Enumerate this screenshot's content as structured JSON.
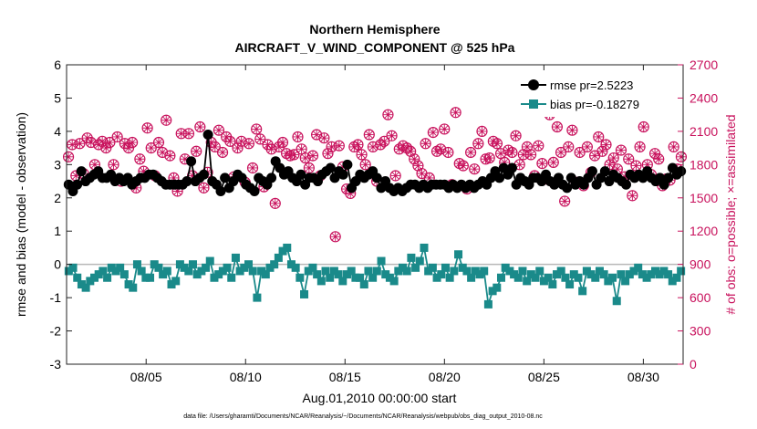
{
  "chart_data": {
    "type": "line",
    "title_line1": "Northern Hemisphere",
    "title_line2": "AIRCRAFT_V_WIND_COMPONENT @ 525 hPa",
    "xlabel": "Aug.01,2010 00:00:00 start",
    "ylabel_left": "rmse and bias (model - observation)",
    "ylabel_right": "# of obs: o=possible; ×=assimilated",
    "footnote": "data file: /Users/gharamti/Documents/NCAR/Reanalysis/~/Documents/NCAR/Reanalysis/webpub/obs_diag_output_2010-08.nc",
    "x_ticks": [
      {
        "day": 5,
        "label": "08/05"
      },
      {
        "day": 10,
        "label": "08/10"
      },
      {
        "day": 15,
        "label": "08/15"
      },
      {
        "day": 20,
        "label": "08/20"
      },
      {
        "day": 25,
        "label": "08/25"
      },
      {
        "day": 30,
        "label": "08/30"
      }
    ],
    "xlim": [
      1.0,
      32.0
    ],
    "ylim_left": [
      -3,
      6
    ],
    "y_ticks_left": [
      "-3",
      "-2",
      "-1",
      "0",
      "1",
      "2",
      "3",
      "4",
      "5",
      "6"
    ],
    "ylim_right": [
      0,
      2700
    ],
    "y_ticks_right": [
      "0",
      "300",
      "600",
      "900",
      "1200",
      "1500",
      "1800",
      "2100",
      "2400",
      "2700"
    ],
    "grid": false,
    "legend_placement": "top-right",
    "colors": {
      "rmse": "#000000",
      "bias": "#1a8a8a",
      "obs": "#c8115c",
      "zero_line": "#b8b8b8"
    },
    "series": [
      {
        "name": "rmse pr=2.5223",
        "values": [
          2.4,
          2.2,
          2.4,
          2.8,
          2.5,
          2.6,
          2.7,
          2.8,
          2.6,
          2.6,
          2.7,
          2.5,
          2.6,
          2.5,
          2.6,
          2.4,
          2.5,
          2.6,
          2.6,
          2.7,
          2.7,
          2.6,
          2.5,
          2.4,
          2.4,
          2.4,
          2.4,
          2.4,
          2.5,
          3.1,
          2.5,
          2.6,
          2.7,
          3.9,
          2.5,
          2.4,
          2.2,
          2.6,
          2.3,
          2.5,
          2.7,
          2.6,
          2.4,
          2.3,
          2.2,
          2.6,
          2.5,
          2.4,
          2.6,
          3.1,
          2.9,
          2.7,
          2.8,
          2.6,
          2.5,
          2.7,
          2.4,
          2.6,
          2.6,
          2.5,
          2.7,
          2.8,
          2.9,
          2.6,
          2.8,
          2.7,
          3.0,
          2.3,
          2.5,
          2.7,
          2.6,
          2.7,
          2.8,
          2.6,
          2.3,
          2.5,
          2.3,
          2.2,
          2.3,
          2.2,
          2.3,
          2.4,
          2.4,
          2.3,
          2.4,
          2.3,
          2.4,
          2.4,
          2.4,
          2.4,
          2.3,
          2.4,
          2.3,
          2.4,
          2.3,
          2.4,
          2.3,
          2.4,
          2.5,
          2.4,
          2.6,
          2.8,
          2.6,
          2.9,
          2.7,
          2.9,
          2.4,
          2.6,
          2.5,
          2.4,
          2.6,
          2.6,
          2.5,
          2.7,
          2.5,
          2.4,
          2.6,
          2.4,
          2.3,
          2.6,
          2.4,
          2.5,
          2.4,
          2.6,
          2.8,
          2.4,
          2.6,
          2.8,
          2.5,
          2.7,
          2.6,
          2.5,
          2.4,
          2.7,
          2.6,
          2.7,
          2.6,
          2.8,
          2.6,
          2.5,
          2.6,
          2.4,
          2.6,
          2.9,
          2.7,
          2.8
        ],
        "marker": "filled-circle"
      },
      {
        "name": "bias pr=-0.18279",
        "values": [
          -0.2,
          -0.1,
          -0.4,
          -0.6,
          -0.7,
          -0.5,
          -0.4,
          -0.3,
          -0.2,
          -0.4,
          -0.1,
          -0.2,
          -0.1,
          -0.3,
          -0.6,
          -0.7,
          0.0,
          -0.2,
          -0.4,
          -0.4,
          0.0,
          -0.1,
          -0.3,
          -0.2,
          -0.6,
          -0.5,
          0.0,
          -0.1,
          -0.2,
          0.0,
          -0.3,
          -0.2,
          -0.1,
          0.1,
          -0.4,
          -0.3,
          -0.2,
          -0.1,
          -0.4,
          0.2,
          -0.2,
          -0.1,
          0.0,
          -0.2,
          -1.0,
          -0.2,
          -0.3,
          -0.1,
          0.0,
          0.2,
          0.4,
          0.5,
          0.0,
          -0.1,
          -0.4,
          -0.9,
          -0.2,
          -0.1,
          -0.3,
          -0.5,
          -0.2,
          -0.4,
          -0.2,
          -0.3,
          -0.5,
          -0.3,
          -0.2,
          -0.4,
          -0.4,
          -0.6,
          -0.2,
          -0.4,
          -0.2,
          0.1,
          -0.3,
          -0.4,
          -0.5,
          -0.2,
          -0.1,
          -0.2,
          0.2,
          -0.1,
          0.1,
          0.5,
          -0.2,
          -0.1,
          -0.4,
          -0.3,
          -0.1,
          -0.4,
          -0.2,
          0.3,
          -0.1,
          -0.2,
          -0.4,
          -0.2,
          -0.3,
          -0.2,
          -1.2,
          -0.8,
          -0.7,
          -0.4,
          -0.1,
          -0.2,
          -0.3,
          -0.4,
          -0.2,
          -0.5,
          -0.3,
          -0.4,
          -0.2,
          -0.5,
          -0.4,
          -0.6,
          -0.3,
          -0.2,
          -0.4,
          -0.6,
          -0.3,
          -0.4,
          -0.8,
          -0.2,
          -0.3,
          -0.4,
          -0.2,
          -0.3,
          -0.5,
          -0.4,
          -1.1,
          -0.3,
          -0.5,
          -0.3,
          -0.2,
          -0.1,
          -0.3,
          -0.4,
          -0.3,
          -0.2,
          -0.3,
          -0.2,
          -0.3,
          -0.5,
          -0.4,
          -0.2
        ],
        "marker": "filled-square"
      },
      {
        "name": "# of obs possible",
        "values": [
          1870,
          1980,
          1700,
          1990,
          1720,
          2040,
          2000,
          1800,
          1980,
          2010,
          1950,
          2000,
          1800,
          2050,
          1650,
          1990,
          1950,
          2000,
          1590,
          1850,
          1740,
          2130,
          1950,
          1700,
          2000,
          1910,
          2200,
          1880,
          1680,
          1560,
          2080,
          1850,
          2080,
          1700,
          1920,
          2140,
          1590,
          1730,
          2000,
          1960,
          2110,
          1910,
          2050,
          2010,
          1690,
          1950,
          2010,
          1640,
          1990,
          1770,
          2120,
          2030,
          1600,
          1980,
          1940,
          1450,
          1960,
          2000,
          1900,
          1880,
          1890,
          2050,
          1940,
          1860,
          1770,
          1880,
          2070,
          1700,
          2040,
          1900,
          1960,
          1150,
          1970,
          1780,
          1580,
          1540,
          1960,
          1980,
          1890,
          1800,
          2070,
          1960,
          1650,
          1980,
          2010,
          2250,
          2060,
          1700,
          1940,
          1970,
          1950,
          1920,
          1850,
          1790,
          1720,
          1990,
          1680,
          2090,
          1920,
          1940,
          2120,
          1910,
          1620,
          2270,
          1810,
          1790,
          1580,
          1910,
          1760,
          1990,
          2100,
          1850,
          1860,
          2010,
          1990,
          1900,
          1820,
          1930,
          1910,
          2060,
          1800,
          1890,
          1960,
          1890,
          1700,
          1970,
          1810,
          1670,
          2250,
          1820,
          2140,
          1910,
          1470,
          1960,
          2110,
          1640,
          1910,
          1610,
          1960,
          1730,
          1880,
          2050,
          1920,
          1980,
          1800,
          1860,
          1760,
          1930,
          1690,
          1850,
          1520,
          1790,
          1960,
          2140,
          1800,
          1710,
          1900,
          1850,
          1610,
          1670,
          1660,
          1960,
          1760,
          1870
        ],
        "marker": "circle-cross"
      }
    ]
  }
}
